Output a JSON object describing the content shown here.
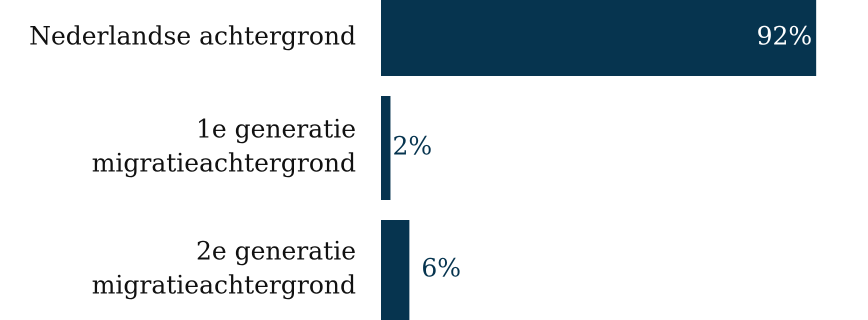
{
  "chart_data": {
    "type": "bar",
    "orientation": "horizontal",
    "categories": [
      "Nederlandse achtergrond",
      "1e generatie migratieachtergrond",
      "2e generatie migratieachtergrond"
    ],
    "category_lines": [
      [
        "Nederlandse achtergrond"
      ],
      [
        "1e generatie",
        "migratieachtergrond"
      ],
      [
        "2e generatie",
        "migratieachtergrond"
      ]
    ],
    "values": [
      92,
      2,
      6
    ],
    "value_labels": [
      "92%",
      "2%",
      "6%"
    ],
    "unit": "%",
    "xlim": [
      0,
      100
    ],
    "grid": false,
    "legend": "none",
    "colors": {
      "bar": "#06344f",
      "label_inside": "#ffffff",
      "label_outside": "#06344f"
    }
  }
}
